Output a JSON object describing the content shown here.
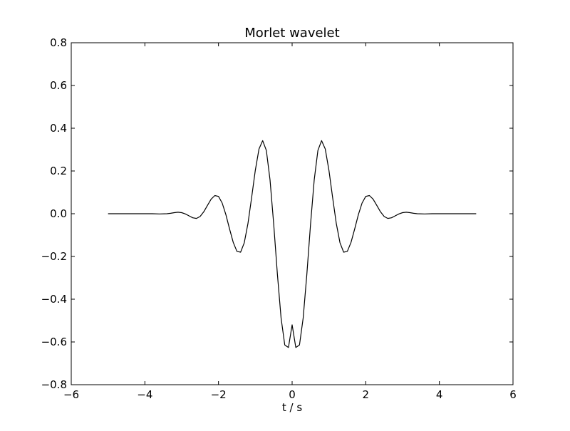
{
  "chart_data": {
    "type": "line",
    "title": "Morlet wavelet",
    "xlabel": "t / s",
    "ylabel": "",
    "xlim": [
      -6,
      6
    ],
    "ylim": [
      -0.8,
      0.8
    ],
    "x_ticks": [
      -6,
      -4,
      -2,
      0,
      2,
      4,
      6
    ],
    "y_ticks": [
      -0.8,
      -0.6,
      -0.4,
      -0.2,
      0.0,
      0.2,
      0.4,
      0.6,
      0.8
    ],
    "x_tick_labels": [
      "−6",
      "−4",
      "−2",
      "0",
      "2",
      "4",
      "6"
    ],
    "y_tick_labels": [
      "−0.8",
      "−0.6",
      "−0.4",
      "−0.2",
      "0.0",
      "0.2",
      "0.4",
      "0.6",
      "0.8"
    ],
    "grid": false,
    "line_color": "#000000",
    "series": [
      {
        "x": [
          -5.0,
          -4.8,
          -4.6,
          -4.4,
          -4.2,
          -4.0,
          -3.8,
          -3.6,
          -3.4,
          -3.3,
          -3.2,
          -3.1,
          -3.0,
          -2.9,
          -2.8,
          -2.7,
          -2.6,
          -2.5,
          -2.4,
          -2.3,
          -2.2,
          -2.1,
          -2.0,
          -1.9,
          -1.8,
          -1.7,
          -1.6,
          -1.5,
          -1.4,
          -1.3,
          -1.2,
          -1.1,
          -1.0,
          -0.9,
          -0.8,
          -0.7,
          -0.6,
          -0.5,
          -0.4,
          -0.3,
          -0.2,
          -0.1,
          0.0,
          0.1,
          0.2,
          0.3,
          0.4,
          0.5,
          0.6,
          0.7,
          0.8,
          0.9,
          1.0,
          1.1,
          1.2,
          1.3,
          1.4,
          1.5,
          1.6,
          1.7,
          1.8,
          1.9,
          2.0,
          2.1,
          2.2,
          2.3,
          2.4,
          2.5,
          2.6,
          2.7,
          2.8,
          2.9,
          3.0,
          3.1,
          3.2,
          3.3,
          3.4,
          3.6,
          3.8,
          4.0,
          4.2,
          4.4,
          4.6,
          4.8,
          5.0
        ],
        "y": [
          0.0,
          0.0,
          0.0,
          0.0,
          0.0,
          0.0,
          0.0,
          -0.001,
          0.0,
          0.002,
          0.005,
          0.007,
          0.005,
          -0.001,
          -0.01,
          -0.019,
          -0.022,
          -0.013,
          0.009,
          0.039,
          0.068,
          0.085,
          0.081,
          0.05,
          -0.004,
          -0.071,
          -0.134,
          -0.176,
          -0.18,
          -0.136,
          -0.046,
          0.076,
          0.203,
          0.303,
          0.342,
          0.296,
          0.158,
          -0.05,
          -0.283,
          -0.488,
          -0.614,
          -0.626,
          -0.52,
          -0.626,
          -0.614,
          -0.488,
          -0.283,
          -0.05,
          0.158,
          0.296,
          0.342,
          0.303,
          0.203,
          0.076,
          -0.046,
          -0.136,
          -0.18,
          -0.176,
          -0.134,
          -0.071,
          -0.004,
          0.05,
          0.081,
          0.085,
          0.068,
          0.039,
          0.009,
          -0.013,
          -0.022,
          -0.019,
          -0.01,
          -0.001,
          0.005,
          0.007,
          0.005,
          0.002,
          0.0,
          -0.001,
          0.0,
          0.0,
          0.0,
          0.0,
          0.0,
          0.0,
          0.0
        ]
      }
    ]
  }
}
